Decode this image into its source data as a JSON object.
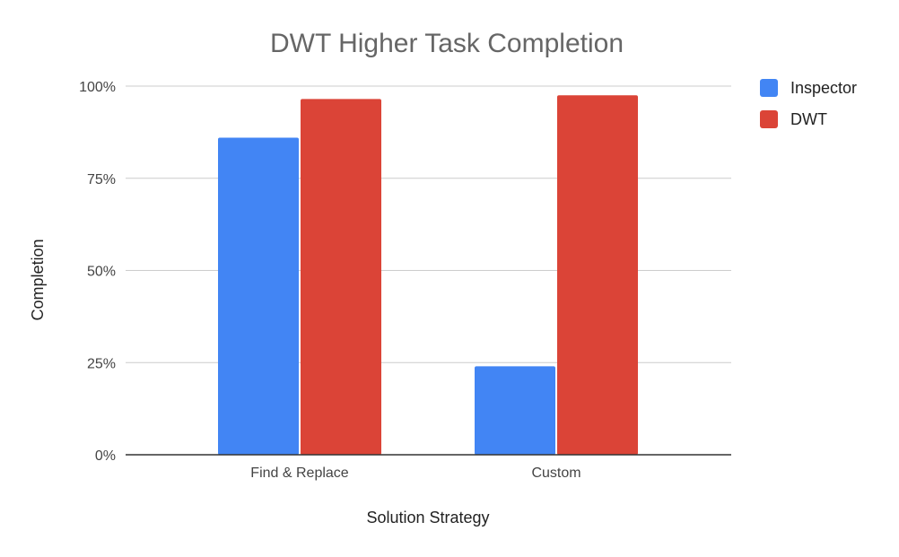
{
  "chart_data": {
    "type": "bar",
    "title": "DWT Higher Task Completion",
    "xlabel": "Solution Strategy",
    "ylabel": "Completion",
    "categories": [
      "Find & Replace",
      "Custom"
    ],
    "series": [
      {
        "name": "Inspector",
        "values": [
          86,
          24
        ],
        "color": "#4285f4"
      },
      {
        "name": "DWT",
        "values": [
          96.5,
          97.5
        ],
        "color": "#db4437"
      }
    ],
    "ylim": [
      0,
      100
    ],
    "yticks": [
      0,
      25,
      50,
      75,
      100
    ],
    "ytick_labels": [
      "0%",
      "25%",
      "50%",
      "75%",
      "100%"
    ],
    "grid": true,
    "legend_position": "right"
  }
}
